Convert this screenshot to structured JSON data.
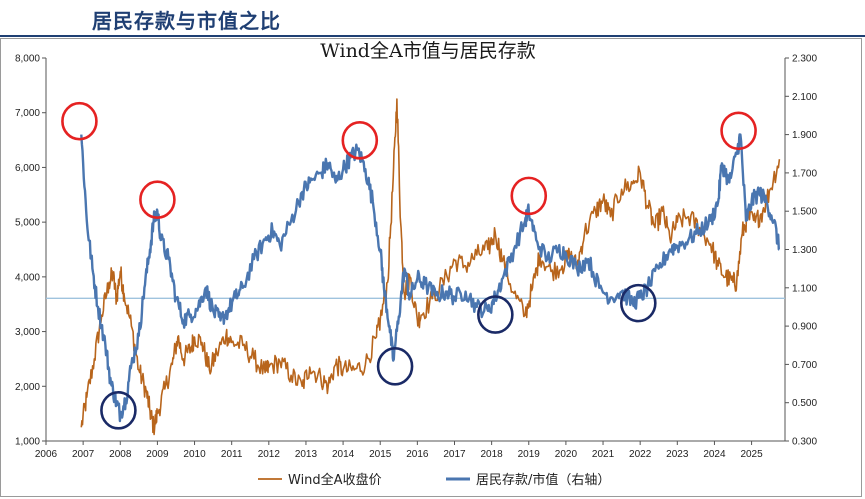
{
  "header": {
    "title": "居民存款与市值之比"
  },
  "chart_data": {
    "type": "line",
    "title": "Wind全A市值与居民存款",
    "xlabel": "",
    "ylabel": "",
    "y_left": {
      "min": 1000,
      "max": 8000,
      "ticks": [
        "1,000",
        "2,000",
        "3,000",
        "4,000",
        "5,000",
        "6,000",
        "7,000",
        "8,000"
      ]
    },
    "y_right": {
      "min": 0.3,
      "max": 2.3,
      "ticks": [
        "0.300",
        "0.500",
        "0.700",
        "0.900",
        "1.100",
        "1.300",
        "1.500",
        "1.700",
        "1.900",
        "2.100",
        "2.300"
      ]
    },
    "x_range": [
      2006.0,
      2025.9
    ],
    "x_ticks": [
      "2006",
      "2007",
      "2008",
      "2009",
      "2010",
      "2011",
      "2012",
      "2013",
      "2014",
      "2015",
      "2016",
      "2017",
      "2018",
      "2019",
      "2020",
      "2021",
      "2022",
      "2023",
      "2024",
      "2025"
    ],
    "reference_line": {
      "axis": "right",
      "value": 1.045,
      "color": "#9fc3de"
    },
    "series": [
      {
        "name": "Wind全A收盘价",
        "axis": "left",
        "color": "#b8651c",
        "points": [
          [
            2006.95,
            1250
          ],
          [
            2007.1,
            1800
          ],
          [
            2007.3,
            2500
          ],
          [
            2007.5,
            3300
          ],
          [
            2007.7,
            3900
          ],
          [
            2007.8,
            4050
          ],
          [
            2007.9,
            3600
          ],
          [
            2008.0,
            4100
          ],
          [
            2008.1,
            3700
          ],
          [
            2008.3,
            3100
          ],
          [
            2008.5,
            2300
          ],
          [
            2008.7,
            1900
          ],
          [
            2008.8,
            1550
          ],
          [
            2008.9,
            1250
          ],
          [
            2009.0,
            1500
          ],
          [
            2009.2,
            1950
          ],
          [
            2009.4,
            2400
          ],
          [
            2009.55,
            2900
          ],
          [
            2009.7,
            2500
          ],
          [
            2009.9,
            2700
          ],
          [
            2010.0,
            2900
          ],
          [
            2010.2,
            2800
          ],
          [
            2010.4,
            2300
          ],
          [
            2010.6,
            2600
          ],
          [
            2010.85,
            2950
          ],
          [
            2011.0,
            2800
          ],
          [
            2011.3,
            2750
          ],
          [
            2011.6,
            2500
          ],
          [
            2011.9,
            2250
          ],
          [
            2012.0,
            2350
          ],
          [
            2012.3,
            2450
          ],
          [
            2012.6,
            2200
          ],
          [
            2012.9,
            2000
          ],
          [
            2013.1,
            2350
          ],
          [
            2013.4,
            2150
          ],
          [
            2013.6,
            2000
          ],
          [
            2013.8,
            2400
          ],
          [
            2014.0,
            2300
          ],
          [
            2014.3,
            2300
          ],
          [
            2014.6,
            2400
          ],
          [
            2014.9,
            2900
          ],
          [
            2015.0,
            3200
          ],
          [
            2015.2,
            3900
          ],
          [
            2015.35,
            5800
          ],
          [
            2015.45,
            7250
          ],
          [
            2015.55,
            5000
          ],
          [
            2015.65,
            3700
          ],
          [
            2015.8,
            4000
          ],
          [
            2016.0,
            3200
          ],
          [
            2016.1,
            3300
          ],
          [
            2016.4,
            3600
          ],
          [
            2016.8,
            4000
          ],
          [
            2017.0,
            4300
          ],
          [
            2017.3,
            4200
          ],
          [
            2017.6,
            4400
          ],
          [
            2017.9,
            4500
          ],
          [
            2018.1,
            4800
          ],
          [
            2018.3,
            4300
          ],
          [
            2018.6,
            3700
          ],
          [
            2018.9,
            3300
          ],
          [
            2019.1,
            3800
          ],
          [
            2019.3,
            4400
          ],
          [
            2019.6,
            4100
          ],
          [
            2019.9,
            4200
          ],
          [
            2020.1,
            4400
          ],
          [
            2020.3,
            4200
          ],
          [
            2020.5,
            4800
          ],
          [
            2020.8,
            5200
          ],
          [
            2021.0,
            5400
          ],
          [
            2021.2,
            5100
          ],
          [
            2021.5,
            5600
          ],
          [
            2021.8,
            5700
          ],
          [
            2022.0,
            5900
          ],
          [
            2022.2,
            5300
          ],
          [
            2022.4,
            4900
          ],
          [
            2022.6,
            5200
          ],
          [
            2022.8,
            4700
          ],
          [
            2023.0,
            5000
          ],
          [
            2023.3,
            5100
          ],
          [
            2023.6,
            4900
          ],
          [
            2023.9,
            4600
          ],
          [
            2024.1,
            4200
          ],
          [
            2024.3,
            4000
          ],
          [
            2024.5,
            3900
          ],
          [
            2024.6,
            3900
          ],
          [
            2024.75,
            4800
          ],
          [
            2024.9,
            5100
          ],
          [
            2025.1,
            5000
          ],
          [
            2025.3,
            5200
          ],
          [
            2025.5,
            5600
          ],
          [
            2025.75,
            6150
          ]
        ]
      },
      {
        "name": "居民存款/市值（右轴）",
        "axis": "right",
        "color": "#4a76b0",
        "points": [
          [
            2006.95,
            1.9
          ],
          [
            2007.1,
            1.45
          ],
          [
            2007.25,
            1.2
          ],
          [
            2007.4,
            1.0
          ],
          [
            2007.6,
            0.8
          ],
          [
            2007.75,
            0.6
          ],
          [
            2007.9,
            0.5
          ],
          [
            2008.0,
            0.44
          ],
          [
            2008.15,
            0.52
          ],
          [
            2008.3,
            0.7
          ],
          [
            2008.5,
            0.85
          ],
          [
            2008.65,
            1.1
          ],
          [
            2008.8,
            1.3
          ],
          [
            2008.9,
            1.45
          ],
          [
            2009.0,
            1.5
          ],
          [
            2009.1,
            1.35
          ],
          [
            2009.3,
            1.25
          ],
          [
            2009.5,
            1.05
          ],
          [
            2009.7,
            0.93
          ],
          [
            2009.9,
            0.96
          ],
          [
            2010.1,
            1.0
          ],
          [
            2010.3,
            1.1
          ],
          [
            2010.5,
            0.98
          ],
          [
            2010.7,
            0.93
          ],
          [
            2010.9,
            0.98
          ],
          [
            2011.1,
            1.05
          ],
          [
            2011.3,
            1.1
          ],
          [
            2011.6,
            1.25
          ],
          [
            2011.9,
            1.35
          ],
          [
            2012.1,
            1.4
          ],
          [
            2012.3,
            1.32
          ],
          [
            2012.6,
            1.45
          ],
          [
            2012.9,
            1.6
          ],
          [
            2013.1,
            1.65
          ],
          [
            2013.4,
            1.7
          ],
          [
            2013.6,
            1.75
          ],
          [
            2013.8,
            1.65
          ],
          [
            2014.0,
            1.72
          ],
          [
            2014.2,
            1.78
          ],
          [
            2014.4,
            1.82
          ],
          [
            2014.6,
            1.72
          ],
          [
            2014.8,
            1.55
          ],
          [
            2015.0,
            1.3
          ],
          [
            2015.1,
            1.1
          ],
          [
            2015.25,
            0.9
          ],
          [
            2015.35,
            0.72
          ],
          [
            2015.5,
            0.95
          ],
          [
            2015.65,
            1.2
          ],
          [
            2015.8,
            1.05
          ],
          [
            2016.0,
            1.15
          ],
          [
            2016.2,
            1.12
          ],
          [
            2016.5,
            1.06
          ],
          [
            2016.8,
            1.08
          ],
          [
            2017.0,
            1.05
          ],
          [
            2017.3,
            1.08
          ],
          [
            2017.6,
            1.0
          ],
          [
            2017.9,
            0.98
          ],
          [
            2018.1,
            1.05
          ],
          [
            2018.3,
            1.15
          ],
          [
            2018.6,
            1.3
          ],
          [
            2018.9,
            1.45
          ],
          [
            2019.0,
            1.5
          ],
          [
            2019.2,
            1.35
          ],
          [
            2019.5,
            1.25
          ],
          [
            2019.8,
            1.3
          ],
          [
            2020.0,
            1.28
          ],
          [
            2020.3,
            1.2
          ],
          [
            2020.6,
            1.25
          ],
          [
            2020.9,
            1.1
          ],
          [
            2021.2,
            1.05
          ],
          [
            2021.5,
            1.08
          ],
          [
            2021.8,
            1.02
          ],
          [
            2022.0,
            1.05
          ],
          [
            2022.2,
            1.1
          ],
          [
            2022.5,
            1.2
          ],
          [
            2022.8,
            1.3
          ],
          [
            2023.0,
            1.32
          ],
          [
            2023.3,
            1.35
          ],
          [
            2023.6,
            1.4
          ],
          [
            2023.9,
            1.45
          ],
          [
            2024.1,
            1.55
          ],
          [
            2024.2,
            1.75
          ],
          [
            2024.4,
            1.65
          ],
          [
            2024.6,
            1.8
          ],
          [
            2024.7,
            1.9
          ],
          [
            2024.85,
            1.45
          ],
          [
            2025.0,
            1.55
          ],
          [
            2025.2,
            1.6
          ],
          [
            2025.4,
            1.55
          ],
          [
            2025.6,
            1.45
          ],
          [
            2025.75,
            1.3
          ]
        ]
      }
    ],
    "annotations": [
      {
        "kind": "circle",
        "color": "#e52222",
        "x": 2006.9,
        "y_right": 1.97
      },
      {
        "kind": "circle",
        "color": "#e52222",
        "x": 2009.0,
        "y_right": 1.56
      },
      {
        "kind": "circle",
        "color": "#e52222",
        "x": 2014.45,
        "y_right": 1.87
      },
      {
        "kind": "circle",
        "color": "#e52222",
        "x": 2019.0,
        "y_right": 1.58
      },
      {
        "kind": "circle",
        "color": "#e52222",
        "x": 2024.65,
        "y_right": 1.92
      },
      {
        "kind": "circle",
        "color": "#1a2a66",
        "x": 2007.95,
        "y_right": 0.46
      },
      {
        "kind": "circle",
        "color": "#1a2a66",
        "x": 2015.4,
        "y_right": 0.69
      },
      {
        "kind": "circle",
        "color": "#1a2a66",
        "x": 2018.1,
        "y_right": 0.96
      },
      {
        "kind": "circle",
        "color": "#1a2a66",
        "x": 2021.95,
        "y_right": 1.02
      }
    ],
    "legend": {
      "placement": "bottom"
    }
  }
}
